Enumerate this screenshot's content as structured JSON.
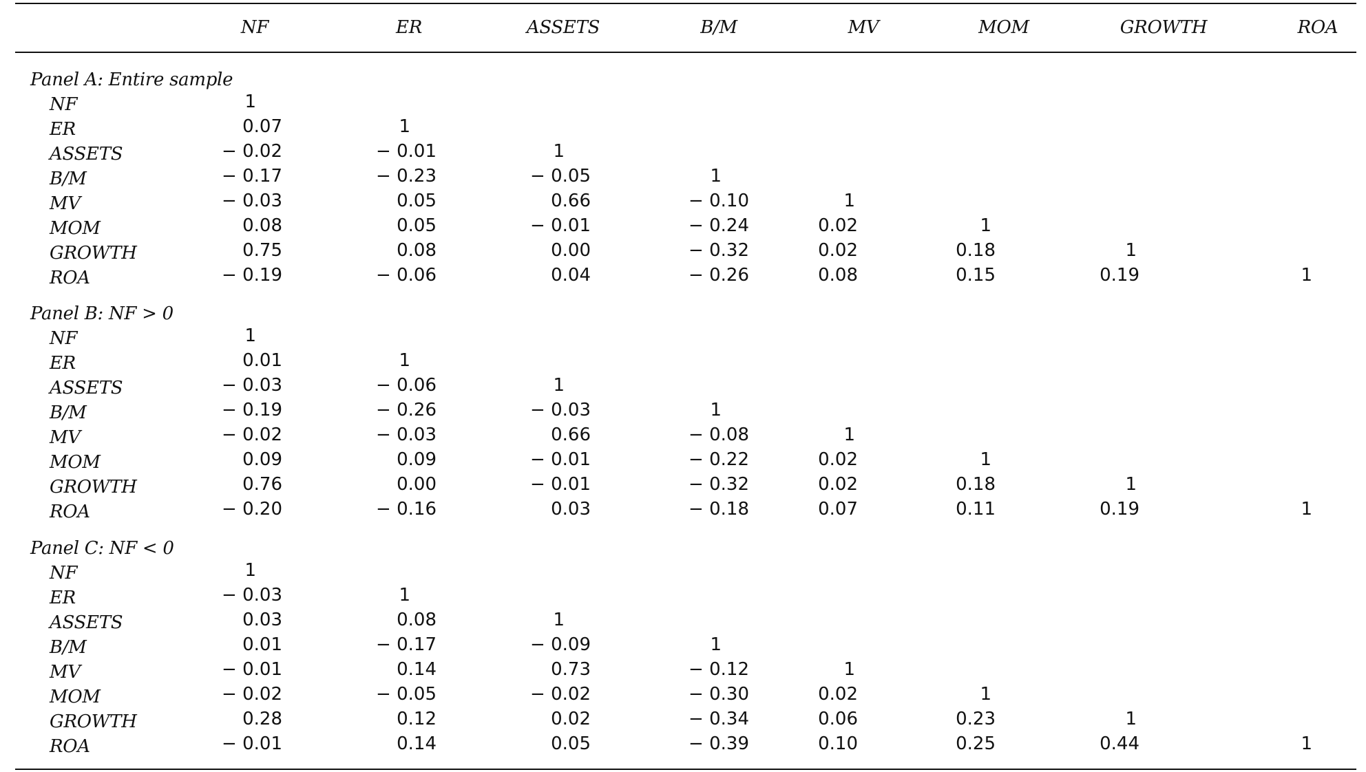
{
  "columns": [
    "NF",
    "ER",
    "ASSETS",
    "B/M",
    "MV",
    "MOM",
    "GROWTH",
    "ROA"
  ],
  "panels": [
    {
      "title": "Panel A: Entire sample",
      "rows": [
        {
          "label": "NF",
          "values": [
            "1"
          ]
        },
        {
          "label": "ER",
          "values": [
            "0.07",
            "1"
          ]
        },
        {
          "label": "ASSETS",
          "values": [
            "− 0.02",
            "− 0.01",
            "1"
          ]
        },
        {
          "label": "B/M",
          "values": [
            "− 0.17",
            "− 0.23",
            "− 0.05",
            "1"
          ]
        },
        {
          "label": "MV",
          "values": [
            "− 0.03",
            "0.05",
            "0.66",
            "− 0.10",
            "1"
          ]
        },
        {
          "label": "MOM",
          "values": [
            "0.08",
            "0.05",
            "− 0.01",
            "− 0.24",
            "0.02",
            "1"
          ]
        },
        {
          "label": "GROWTH",
          "values": [
            "0.75",
            "0.08",
            "0.00",
            "− 0.32",
            "0.02",
            "0.18",
            "1"
          ]
        },
        {
          "label": "ROA",
          "values": [
            "− 0.19",
            "− 0.06",
            "0.04",
            "− 0.26",
            "0.08",
            "0.15",
            "0.19",
            "1"
          ]
        }
      ]
    },
    {
      "title": "Panel B: NF > 0",
      "rows": [
        {
          "label": "NF",
          "values": [
            "1"
          ]
        },
        {
          "label": "ER",
          "values": [
            "0.01",
            "1"
          ]
        },
        {
          "label": "ASSETS",
          "values": [
            "− 0.03",
            "− 0.06",
            "1"
          ]
        },
        {
          "label": "B/M",
          "values": [
            "− 0.19",
            "− 0.26",
            "− 0.03",
            "1"
          ]
        },
        {
          "label": "MV",
          "values": [
            "− 0.02",
            "− 0.03",
            "0.66",
            "− 0.08",
            "1"
          ]
        },
        {
          "label": "MOM",
          "values": [
            "0.09",
            "0.09",
            "− 0.01",
            "− 0.22",
            "0.02",
            "1"
          ]
        },
        {
          "label": "GROWTH",
          "values": [
            "0.76",
            "0.00",
            "− 0.01",
            "− 0.32",
            "0.02",
            "0.18",
            "1"
          ]
        },
        {
          "label": "ROA",
          "values": [
            "− 0.20",
            "− 0.16",
            "0.03",
            "− 0.18",
            "0.07",
            "0.11",
            "0.19",
            "1"
          ]
        }
      ]
    },
    {
      "title": "Panel C: NF < 0",
      "rows": [
        {
          "label": "NF",
          "values": [
            "1"
          ]
        },
        {
          "label": "ER",
          "values": [
            "− 0.03",
            "1"
          ]
        },
        {
          "label": "ASSETS",
          "values": [
            "0.03",
            "0.08",
            "1"
          ]
        },
        {
          "label": "B/M",
          "values": [
            "0.01",
            "− 0.17",
            "− 0.09",
            "1"
          ]
        },
        {
          "label": "MV",
          "values": [
            "− 0.01",
            "0.14",
            "0.73",
            "− 0.12",
            "1"
          ]
        },
        {
          "label": "MOM",
          "values": [
            "− 0.02",
            "− 0.05",
            "− 0.02",
            "− 0.30",
            "0.02",
            "1"
          ]
        },
        {
          "label": "GROWTH",
          "values": [
            "0.28",
            "0.12",
            "0.02",
            "− 0.34",
            "0.06",
            "0.23",
            "1"
          ]
        },
        {
          "label": "ROA",
          "values": [
            "− 0.01",
            "0.14",
            "0.05",
            "− 0.39",
            "0.10",
            "0.25",
            "0.44",
            "1"
          ]
        }
      ]
    }
  ]
}
